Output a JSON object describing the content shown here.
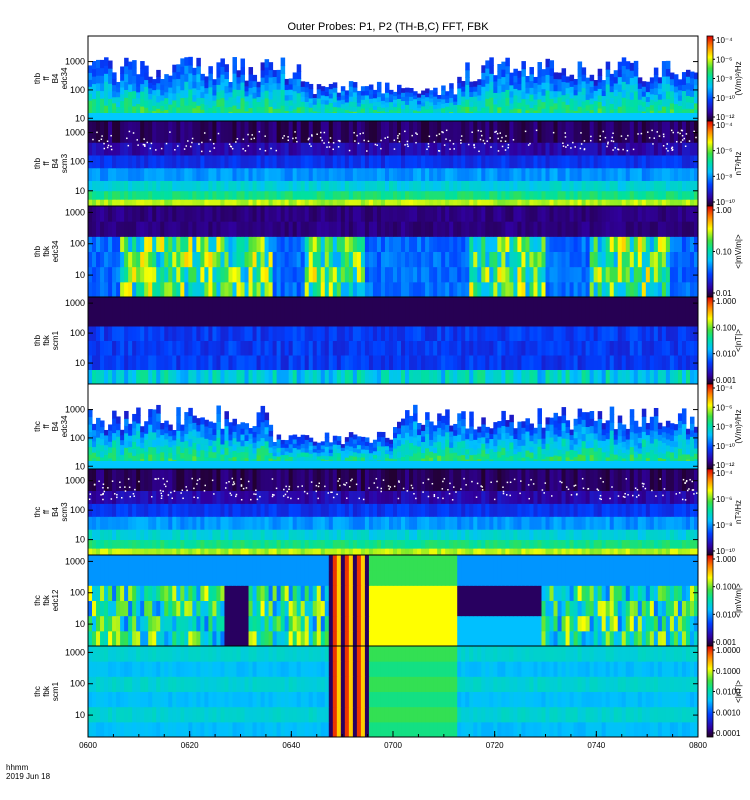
{
  "chart_data": {
    "type": "heatmap",
    "title": "Outer Probes: P1, P2 (TH-B,C) FFT, FBK",
    "footer": {
      "line1": "hhmm",
      "line2": "2019 Jun 18"
    },
    "x_ticks": [
      "0600",
      "0620",
      "0640",
      "0700",
      "0720",
      "0740",
      "0800"
    ],
    "panels": [
      {
        "id": "thb-ff-b4-edc34",
        "label_lines": [
          "thb",
          "ff",
          "B4",
          "edc34"
        ],
        "y_ticks": [
          "1000",
          "100",
          "10"
        ],
        "y_tick_values": [
          1000,
          100,
          10
        ],
        "ylim": [
          8,
          8000
        ],
        "cbar_ticks": [
          "10⁻⁴",
          "10⁻⁶",
          "10⁻⁸",
          "10⁻¹⁰",
          "10⁻¹²"
        ],
        "cbar_label": "(V/m)²/Hz",
        "style": "efft-b"
      },
      {
        "id": "thb-ff-b4-scm3",
        "label_lines": [
          "thb",
          "ff",
          "B4",
          "scm3"
        ],
        "y_ticks": [
          "1000",
          "100",
          "10"
        ],
        "y_tick_values": [
          1000,
          100,
          10
        ],
        "ylim": [
          3,
          2500
        ],
        "cbar_ticks": [
          "10⁻⁴",
          "10⁻⁶",
          "10⁻⁸",
          "10⁻¹⁰"
        ],
        "cbar_label": "nT²/Hz",
        "style": "scm-ff"
      },
      {
        "id": "thb-fbk-edc34",
        "label_lines": [
          "thb",
          "fbk",
          "edc34"
        ],
        "y_ticks": [
          "1000",
          "100",
          "10"
        ],
        "y_tick_values": [
          1000,
          100,
          10
        ],
        "ylim": [
          2,
          1600
        ],
        "cbar_ticks": [
          "1.00",
          "0.10",
          "0.01"
        ],
        "cbar_label": "<|mV/m|>",
        "style": "efbk-b"
      },
      {
        "id": "thb-fbk-scm1",
        "label_lines": [
          "thb",
          "fbk",
          "scm1"
        ],
        "y_ticks": [
          "1000",
          "100",
          "10"
        ],
        "y_tick_values": [
          1000,
          100,
          10
        ],
        "ylim": [
          2,
          1600
        ],
        "cbar_ticks": [
          "1.000",
          "0.100",
          "0.010",
          "0.001"
        ],
        "cbar_label": "<|nT|>",
        "style": "bfbk-b"
      },
      {
        "id": "thc-ff-b4-edc34",
        "label_lines": [
          "thc",
          "ff",
          "B4",
          "edc34"
        ],
        "y_ticks": [
          "1000",
          "100",
          "10"
        ],
        "y_tick_values": [
          1000,
          100,
          10
        ],
        "ylim": [
          8,
          8000
        ],
        "cbar_ticks": [
          "10⁻⁴",
          "10⁻⁶",
          "10⁻⁸",
          "10⁻¹⁰",
          "10⁻¹²"
        ],
        "cbar_label": "(V/m)²/Hz",
        "style": "efft-c"
      },
      {
        "id": "thc-ff-b4-scm3",
        "label_lines": [
          "thc",
          "ff",
          "B4",
          "scm3"
        ],
        "y_ticks": [
          "1000",
          "100",
          "10"
        ],
        "y_tick_values": [
          1000,
          100,
          10
        ],
        "ylim": [
          3,
          2500
        ],
        "cbar_ticks": [
          "10⁻⁴",
          "10⁻⁶",
          "10⁻⁸",
          "10⁻¹⁰"
        ],
        "cbar_label": "nT²/Hz",
        "style": "scm-ff"
      },
      {
        "id": "thc-fbk-edc12",
        "label_lines": [
          "thc",
          "fbk",
          "edc12"
        ],
        "y_ticks": [
          "1000",
          "100",
          "10"
        ],
        "y_tick_values": [
          1000,
          100,
          10
        ],
        "ylim": [
          2,
          1600
        ],
        "cbar_ticks": [
          "1.000",
          "0.100",
          "0.010",
          "0.001"
        ],
        "cbar_label": "<|mV/m|>",
        "style": "efbk-c"
      },
      {
        "id": "thc-fbk-scm1",
        "label_lines": [
          "thc",
          "fbk",
          "scm1"
        ],
        "y_ticks": [
          "1000",
          "100",
          "10"
        ],
        "y_tick_values": [
          1000,
          100,
          10
        ],
        "ylim": [
          2,
          1600
        ],
        "cbar_ticks": [
          "1.0000",
          "0.1000",
          "0.0100",
          "0.0010",
          "0.0001"
        ],
        "cbar_label": "<|nT|>",
        "style": "bfbk-c"
      }
    ]
  }
}
